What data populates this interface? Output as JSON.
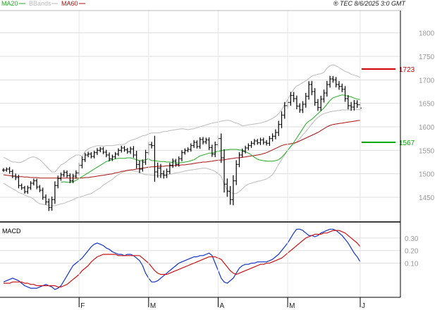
{
  "header": {
    "legend": [
      {
        "label": "MA20",
        "color": "#22aa22",
        "swatch": "line"
      },
      {
        "label": "BBands",
        "color": "#bbbbbb",
        "swatch": "line"
      },
      {
        "label": "MA60",
        "color": "#aa1111",
        "swatch": "line"
      }
    ],
    "stamp": "® TEC 8/6/2025 3:0 GMT"
  },
  "chart_data": [
    {
      "type": "ohlc",
      "panel": "price",
      "ylim": [
        1405,
        1840
      ],
      "yticks": [
        1450,
        1500,
        1550,
        1600,
        1650,
        1700,
        1750,
        1800
      ],
      "grid": true,
      "x_range": [
        0,
        118
      ],
      "month_labels": [
        {
          "label": "F",
          "index": 25
        },
        {
          "label": "M",
          "index": 48
        },
        {
          "label": "A",
          "index": 71
        },
        {
          "label": "M",
          "index": 94
        },
        {
          "label": "J",
          "index": 118
        }
      ],
      "closes": [
        1508,
        1510,
        1505,
        1495,
        1492,
        1475,
        1470,
        1462,
        1470,
        1480,
        1485,
        1472,
        1465,
        1450,
        1440,
        1428,
        1445,
        1475,
        1490,
        1498,
        1503,
        1496,
        1485,
        1495,
        1502,
        1518,
        1530,
        1540,
        1542,
        1537,
        1545,
        1550,
        1553,
        1546,
        1540,
        1532,
        1536,
        1542,
        1550,
        1555,
        1551,
        1547,
        1553,
        1540,
        1520,
        1510,
        1525,
        1545,
        1562,
        1560,
        1504,
        1512,
        1500,
        1497,
        1505,
        1518,
        1527,
        1520,
        1532,
        1545,
        1550,
        1552,
        1560,
        1567,
        1558,
        1573,
        1568,
        1572,
        1556,
        1542,
        1562,
        1575,
        1534,
        1478,
        1463,
        1445,
        1485,
        1520,
        1540,
        1548,
        1555,
        1560,
        1565,
        1570,
        1566,
        1572,
        1567,
        1565,
        1575,
        1580,
        1588,
        1605,
        1625,
        1645,
        1652,
        1667,
        1660,
        1644,
        1636,
        1648,
        1665,
        1690,
        1675,
        1652,
        1641,
        1659,
        1672,
        1690,
        1702,
        1700,
        1690,
        1686,
        1680,
        1660,
        1645,
        1642,
        1650,
        1647,
        1640
      ],
      "ranges": [
        14,
        12,
        16,
        14,
        18,
        20,
        14,
        14,
        16,
        14,
        16,
        16,
        14,
        18,
        20,
        24,
        22,
        30,
        20,
        16,
        16,
        14,
        16,
        16,
        18,
        18,
        22,
        16,
        16,
        14,
        14,
        16,
        14,
        14,
        16,
        18,
        16,
        14,
        14,
        16,
        14,
        14,
        16,
        20,
        30,
        28,
        18,
        20,
        18,
        20,
        70,
        40,
        30,
        24,
        20,
        18,
        18,
        16,
        16,
        18,
        14,
        14,
        16,
        16,
        14,
        16,
        18,
        16,
        18,
        20,
        22,
        22,
        36,
        60,
        40,
        36,
        40,
        30,
        20,
        18,
        16,
        16,
        16,
        14,
        14,
        16,
        16,
        16,
        18,
        20,
        22,
        26,
        26,
        26,
        22,
        24,
        24,
        22,
        20,
        22,
        24,
        24,
        26,
        24,
        24,
        24,
        24,
        26,
        22,
        20,
        20,
        24,
        20,
        22,
        26,
        26,
        24,
        22,
        18
      ],
      "ma20": {
        "start": 19,
        "values": [
          1482,
          1483,
          1482,
          1482,
          1483,
          1486,
          1490,
          1494,
          1498,
          1502,
          1506,
          1510,
          1514,
          1518,
          1522,
          1526,
          1528,
          1530,
          1532,
          1533,
          1533,
          1533,
          1534,
          1534,
          1532,
          1530,
          1528,
          1528,
          1530,
          1532,
          1528,
          1528,
          1527,
          1526,
          1526,
          1525,
          1525,
          1524,
          1523,
          1523,
          1524,
          1525,
          1526,
          1528,
          1530,
          1534,
          1538,
          1540,
          1542,
          1544,
          1544,
          1546,
          1548,
          1549,
          1551,
          1551,
          1552,
          1552,
          1552,
          1551,
          1550,
          1547,
          1544,
          1540,
          1535,
          1531,
          1529,
          1528,
          1527,
          1527,
          1527,
          1528,
          1530,
          1535,
          1542,
          1550,
          1558,
          1567,
          1576,
          1586,
          1596,
          1606,
          1612,
          1616,
          1622,
          1628,
          1634,
          1640,
          1648,
          1656,
          1662,
          1664,
          1666,
          1668,
          1667,
          1665,
          1664,
          1661,
          1659,
          1658
        ]
      },
      "ma60": {
        "start": 0,
        "values": [
          1498,
          1497,
          1496,
          1495,
          1495,
          1494,
          1494,
          1493,
          1493,
          1492,
          1492,
          1492,
          1491,
          1491,
          1491,
          1491,
          1491,
          1491,
          1491,
          1491,
          1491,
          1491,
          1491,
          1491,
          1491,
          1491,
          1491,
          1492,
          1492,
          1493,
          1494,
          1495,
          1496,
          1497,
          1498,
          1499,
          1500,
          1502,
          1503,
          1505,
          1506,
          1507,
          1508,
          1509,
          1510,
          1511,
          1512,
          1513,
          1514,
          1515,
          1515,
          1516,
          1516,
          1516,
          1517,
          1517,
          1517,
          1518,
          1518,
          1519,
          1519,
          1520,
          1521,
          1522,
          1523,
          1524,
          1525,
          1525,
          1526,
          1527,
          1528,
          1529,
          1529,
          1530,
          1531,
          1532,
          1533,
          1534,
          1534,
          1535,
          1536,
          1537,
          1538,
          1539,
          1540,
          1541,
          1543,
          1545,
          1548,
          1551,
          1554,
          1557,
          1560,
          1562,
          1563,
          1564,
          1565,
          1567,
          1570,
          1573,
          1576,
          1579,
          1582,
          1585,
          1588,
          1592,
          1596,
          1600,
          1603,
          1605,
          1606,
          1607,
          1608,
          1609,
          1610,
          1611,
          1612,
          1613,
          1614
        ]
      },
      "bb_upper": {
        "start": 0,
        "values": [
          1535,
          1532,
          1528,
          1525,
          1525,
          1524,
          1525,
          1528,
          1532,
          1535,
          1536,
          1534,
          1530,
          1524,
          1517,
          1510,
          1504,
          1504,
          1511,
          1519,
          1522,
          1527,
          1532,
          1536,
          1540,
          1540,
          1537,
          1548,
          1553,
          1556,
          1558,
          1560,
          1560,
          1559,
          1560,
          1560,
          1560,
          1561,
          1562,
          1562,
          1563,
          1567,
          1571,
          1573,
          1575,
          1578,
          1581,
          1582,
          1585,
          1587,
          1587,
          1587,
          1588,
          1590,
          1590,
          1592,
          1593,
          1594,
          1595,
          1596,
          1595,
          1594,
          1595,
          1596,
          1598,
          1600,
          1602,
          1604,
          1606,
          1608,
          1609,
          1610,
          1612,
          1613,
          1614,
          1613,
          1610,
          1608,
          1606,
          1602,
          1603,
          1604,
          1605,
          1606,
          1607,
          1608,
          1610,
          1612,
          1615,
          1618,
          1622,
          1628,
          1636,
          1648,
          1658,
          1670,
          1680,
          1687,
          1690,
          1694,
          1698,
          1703,
          1708,
          1710,
          1712,
          1713,
          1716,
          1725,
          1730,
          1732,
          1730,
          1726,
          1722,
          1718,
          1716,
          1712,
          1710,
          1708,
          1705
        ]
      },
      "bb_lower": {
        "start": 0,
        "values": [
          1480,
          1476,
          1472,
          1468,
          1465,
          1460,
          1458,
          1455,
          1452,
          1450,
          1446,
          1440,
          1436,
          1435,
          1434,
          1433,
          1432,
          1432,
          1434,
          1436,
          1437,
          1440,
          1442,
          1445,
          1448,
          1450,
          1452,
          1454,
          1456,
          1458,
          1462,
          1466,
          1470,
          1476,
          1480,
          1484,
          1488,
          1494,
          1498,
          1502,
          1505,
          1508,
          1508,
          1506,
          1505,
          1503,
          1500,
          1498,
          1498,
          1497,
          1497,
          1496,
          1496,
          1497,
          1498,
          1499,
          1500,
          1502,
          1503,
          1504,
          1506,
          1507,
          1508,
          1509,
          1510,
          1511,
          1512,
          1512,
          1510,
          1508,
          1505,
          1500,
          1495,
          1478,
          1466,
          1460,
          1458,
          1458,
          1462,
          1468,
          1474,
          1478,
          1480,
          1482,
          1484,
          1485,
          1487,
          1489,
          1493,
          1498,
          1508,
          1520,
          1530,
          1540,
          1550,
          1558,
          1563,
          1568,
          1575,
          1583,
          1590,
          1598,
          1606,
          1614,
          1620,
          1625,
          1628,
          1630,
          1632,
          1633,
          1634,
          1635,
          1636,
          1636,
          1636,
          1636,
          1637,
          1637,
          1637
        ]
      },
      "annotations": [
        {
          "label": "1723",
          "value": 1723,
          "color": "#cc0000"
        },
        {
          "label": "1567",
          "value": 1567,
          "color": "#00aa00"
        }
      ]
    },
    {
      "type": "line",
      "panel": "macd",
      "title": "MACD",
      "ylim": [
        -15,
        40
      ],
      "yticks": [
        10,
        20,
        30
      ],
      "ytick_labels": [
        "0.10",
        "0.20",
        "0.30"
      ],
      "series": [
        {
          "color": "#1133cc",
          "values": [
            -5,
            -4,
            -3,
            -2,
            -3,
            -4,
            -6,
            -8,
            -9,
            -10,
            -10,
            -10,
            -9,
            -8,
            -7,
            -8,
            -9,
            -11,
            -10,
            -8,
            -4,
            0,
            4,
            8,
            10,
            12,
            14,
            17,
            20,
            23,
            25,
            26,
            25,
            24,
            22,
            21,
            19,
            18,
            17,
            17,
            16,
            17,
            17,
            16,
            14,
            12,
            8,
            2,
            -2,
            -5,
            -5,
            -4,
            -2,
            0,
            2,
            4,
            6,
            8,
            10,
            11,
            12,
            13,
            14,
            15,
            15,
            16,
            16,
            17,
            18,
            16,
            10,
            4,
            -2,
            -5,
            -6,
            -4,
            -2,
            2,
            6,
            8,
            9,
            9,
            10,
            10,
            11,
            11,
            11,
            11,
            12,
            13,
            15,
            17,
            20,
            23,
            26,
            30,
            34,
            37,
            37,
            36,
            34,
            32,
            32,
            31,
            32,
            34,
            35,
            36,
            37,
            37,
            36,
            34,
            32,
            29,
            26,
            22,
            18,
            15,
            11
          ]
        },
        {
          "color": "#cc1111",
          "values": [
            -6,
            -6,
            -6,
            -5,
            -5,
            -5,
            -5,
            -6,
            -6,
            -7,
            -7,
            -8,
            -8,
            -8,
            -8,
            -8,
            -8,
            -8,
            -9,
            -9,
            -8,
            -7,
            -5,
            -3,
            -1,
            1,
            4,
            6,
            8,
            11,
            13,
            15,
            16,
            17,
            17,
            17,
            17,
            17,
            16,
            16,
            16,
            16,
            16,
            16,
            16,
            16,
            14,
            12,
            10,
            7,
            4,
            2,
            1,
            1,
            1,
            2,
            3,
            4,
            5,
            6,
            7,
            8,
            9,
            10,
            11,
            12,
            13,
            14,
            15,
            15,
            15,
            14,
            13,
            10,
            7,
            4,
            2,
            1,
            2,
            3,
            4,
            5,
            6,
            7,
            8,
            9,
            9,
            10,
            10,
            11,
            12,
            13,
            14,
            16,
            18,
            20,
            22,
            24,
            26,
            28,
            30,
            31,
            32,
            33,
            33,
            33,
            34,
            34,
            35,
            36,
            36,
            36,
            35,
            34,
            32,
            30,
            28,
            26,
            23
          ]
        }
      ]
    }
  ]
}
